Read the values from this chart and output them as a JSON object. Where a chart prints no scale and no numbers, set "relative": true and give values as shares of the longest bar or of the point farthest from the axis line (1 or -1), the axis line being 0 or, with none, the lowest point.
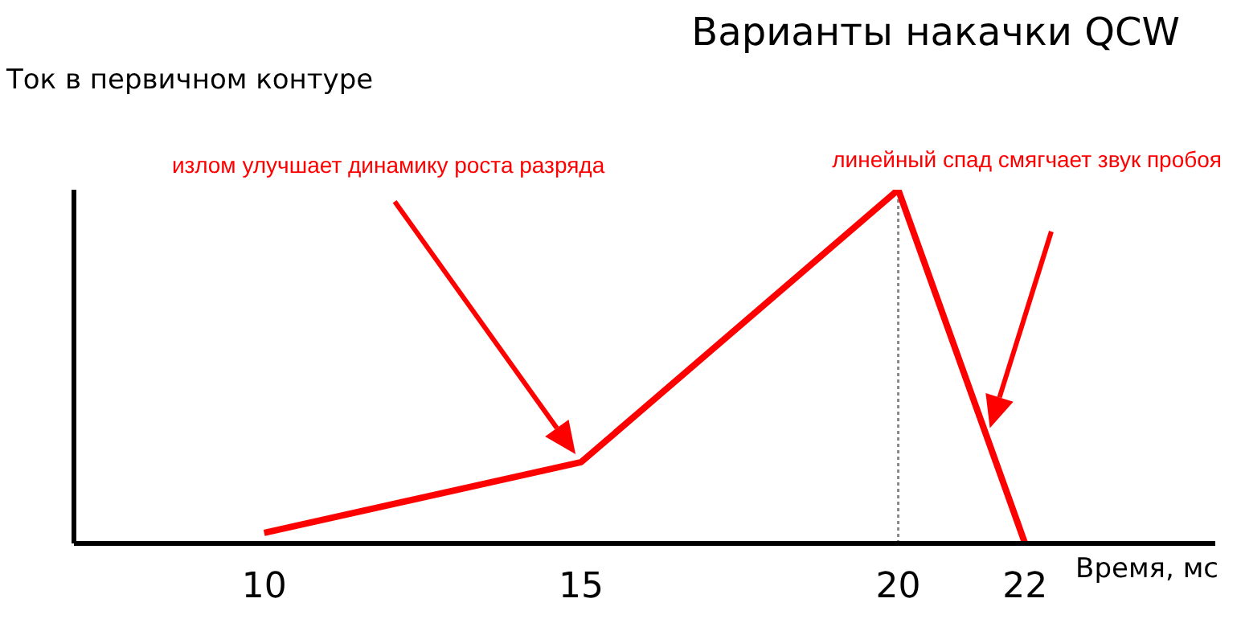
{
  "chart_data": {
    "type": "line",
    "title": "Варианты накачки QCW",
    "xlabel": "Время, мс",
    "ylabel": "Ток в первичном контуре",
    "relative": true,
    "x": [
      10,
      15,
      20,
      22
    ],
    "series": [
      {
        "color": "#ff0000",
        "values": [
          0.03,
          0.23,
          1,
          0
        ]
      }
    ],
    "xlim": [
      7,
      25
    ],
    "xticks": [
      10,
      15,
      20,
      22
    ],
    "ref_lines": [
      {
        "axis": "x",
        "value": 20,
        "color": "#888888",
        "line_style": "dotted"
      }
    ],
    "annotations": [
      "излом улучшает динамику роста разряда",
      "линейный спад смягчает звук пробоя"
    ],
    "grid": false,
    "legend": false,
    "marker": "none",
    "line_style": "solid"
  }
}
